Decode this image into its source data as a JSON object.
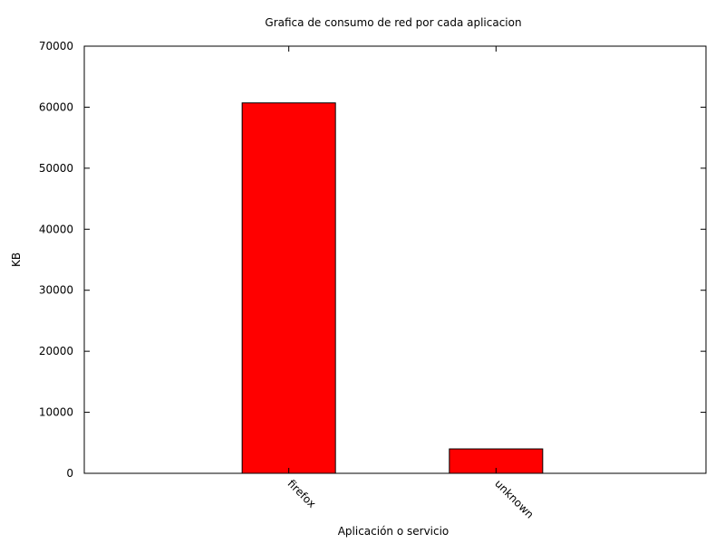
{
  "chart_data": {
    "type": "bar",
    "title": "Grafica de consumo de red por cada aplicacion",
    "xlabel": "Aplicación o servicio",
    "ylabel": "KB",
    "categories": [
      "firefox",
      "unknown"
    ],
    "values": [
      60700,
      4000
    ],
    "ylim": [
      0,
      70000
    ],
    "yticks": [
      0,
      10000,
      20000,
      30000,
      40000,
      50000,
      60000,
      70000
    ],
    "bar_color": "#ff0000",
    "grid": false,
    "legend": "none",
    "x_tick_rotation": "diagonal"
  }
}
